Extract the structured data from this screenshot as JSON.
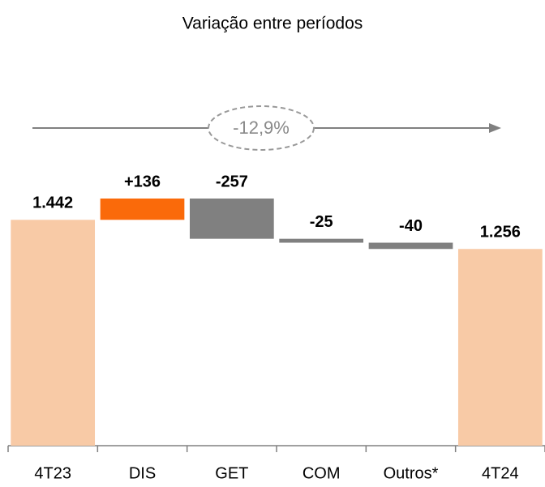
{
  "chart_data": {
    "type": "waterfall",
    "title": "Variação entre períodos",
    "categories": [
      "4T23",
      "DIS",
      "GET",
      "COM",
      "Outros*",
      "4T24"
    ],
    "values": [
      1442,
      136,
      -257,
      -25,
      -40,
      1256
    ],
    "value_labels": [
      "1.442",
      "+136",
      "-257",
      "-25",
      "-40",
      "1.256"
    ],
    "measures": [
      "total",
      "relative",
      "relative",
      "relative",
      "relative",
      "total"
    ],
    "colors": {
      "total": "#f8caa6",
      "increase": "#fa6a0a",
      "decrease": "#808080"
    },
    "annotation": "-12,9%"
  }
}
